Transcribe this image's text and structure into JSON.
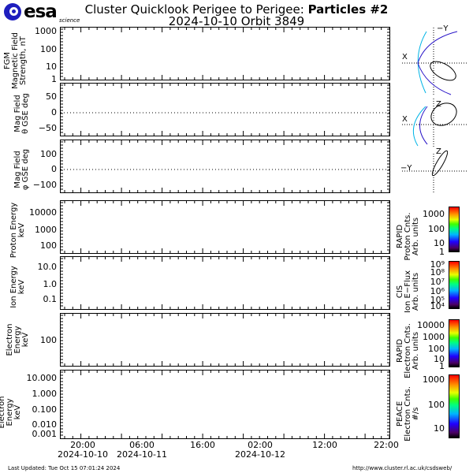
{
  "header": {
    "logo_text": "esa",
    "logo_subtitle": "science",
    "title_prefix": "Cluster Quicklook Perigee to Perigee: ",
    "title_bold": "Particles #2",
    "subtitle": "2024-10-10 Orbit 3849"
  },
  "footer": {
    "last_updated": "Last Updated:  Tue Oct 15 07:01:24 2024",
    "url": "http://www.cluster.rl.ac.uk/csdsweb/"
  },
  "orbit_plots": {
    "plot1": {
      "axis_h": "X",
      "axis_v": "−Y"
    },
    "plot2": {
      "axis_h": "X",
      "axis_v": "Z"
    },
    "plot3": {
      "axis_h": "−Y",
      "axis_v": "Z"
    },
    "colors": {
      "bowshock": "#00b4e6",
      "magnetopause": "#2814c8",
      "orbit": "#000000"
    }
  },
  "chart_data": [
    {
      "type": "line",
      "title": "FGM Magnetic Field Strength",
      "ylabel": "FGM Magnetic Field Strength, nT",
      "yscale": "log",
      "ylim": [
        1,
        1000
      ],
      "yticks": [
        "1000",
        "100",
        "10",
        "1"
      ],
      "series": []
    },
    {
      "type": "line",
      "title": "Mag Field theta GSE",
      "ylabel": "Mag Field θ GSE deg",
      "ylim": [
        -90,
        90
      ],
      "yticks": [
        "50",
        "0",
        "−50"
      ],
      "reference_line": 0,
      "series": []
    },
    {
      "type": "line",
      "title": "Mag Field phi GSE",
      "ylabel": "Mag Field φ GSE deg",
      "ylim": [
        -180,
        180
      ],
      "yticks": [
        "100",
        "0",
        "−100"
      ],
      "reference_line": 0,
      "series": []
    },
    {
      "type": "heatmap",
      "title": "Proton Energy",
      "ylabel": "Proton Energy keV",
      "yscale": "log",
      "yticks": [
        "10000",
        "1000",
        "100"
      ],
      "colorbar": {
        "label": "RAPID Proton Cnts. Arb. units",
        "ticks": [
          "1000",
          "100",
          "10",
          "1"
        ]
      }
    },
    {
      "type": "heatmap",
      "title": "Ion Energy",
      "ylabel": "Ion Energy keV",
      "yscale": "log",
      "yticks": [
        "10.0",
        "1.0",
        "0.1"
      ],
      "colorbar": {
        "label": "CIS Ion E-Flux Arb. units",
        "ticks": [
          "10⁹",
          "10⁸",
          "10⁷",
          "10⁶",
          "10⁵",
          "10⁴"
        ]
      }
    },
    {
      "type": "heatmap",
      "title": "Electron Energy (RAPID)",
      "ylabel": "Electron Energy keV",
      "yscale": "log",
      "yticks": [
        "100"
      ],
      "colorbar": {
        "label": "RAPID Electron Cnts. Arb. units",
        "ticks": [
          "10000",
          "1000",
          "100",
          "10",
          "1"
        ]
      }
    },
    {
      "type": "heatmap",
      "title": "Electron Energy (PEACE)",
      "ylabel": "Electron Energy keV",
      "yscale": "log",
      "yticks": [
        "10.000",
        "1.000",
        "0.100",
        "0.010",
        "0.001"
      ],
      "colorbar": {
        "label": "PEACE Electron Cnts. #/s",
        "ticks": [
          "1000",
          "100",
          "10"
        ]
      }
    }
  ],
  "xaxis": {
    "ticks": [
      {
        "time": "20:00",
        "date": "2024-10-10"
      },
      {
        "time": "06:00",
        "date": "2024-10-11"
      },
      {
        "time": "16:00",
        "date": ""
      },
      {
        "time": "02:00",
        "date": "2024-10-12"
      },
      {
        "time": "12:00",
        "date": ""
      },
      {
        "time": "22:00",
        "date": ""
      }
    ]
  },
  "labels": {
    "p1": [
      "FGM",
      "Magnetic Field",
      "Strength, nT"
    ],
    "p2": [
      "Mag  Field",
      "θ GSE  deg"
    ],
    "p3": [
      "Mag  Field",
      "φ GSE  deg"
    ],
    "p4": [
      "Proton Energy",
      "keV"
    ],
    "p5": [
      "Ion  Energy",
      "keV"
    ],
    "p6": [
      "Electron",
      "Energy",
      "keV"
    ],
    "p7": [
      "Electron",
      "Energy",
      "keV"
    ],
    "c1": [
      "RAPID",
      "Proton Cnts.",
      "Arb. units"
    ],
    "c2": [
      "CIS",
      "Ion E−Flux",
      "Arb. units"
    ],
    "c3": [
      "RAPID",
      "Electron Cnts.",
      "Arb. units"
    ],
    "c4": [
      "PEACE",
      "Electron Cnts.",
      "#/s"
    ]
  }
}
